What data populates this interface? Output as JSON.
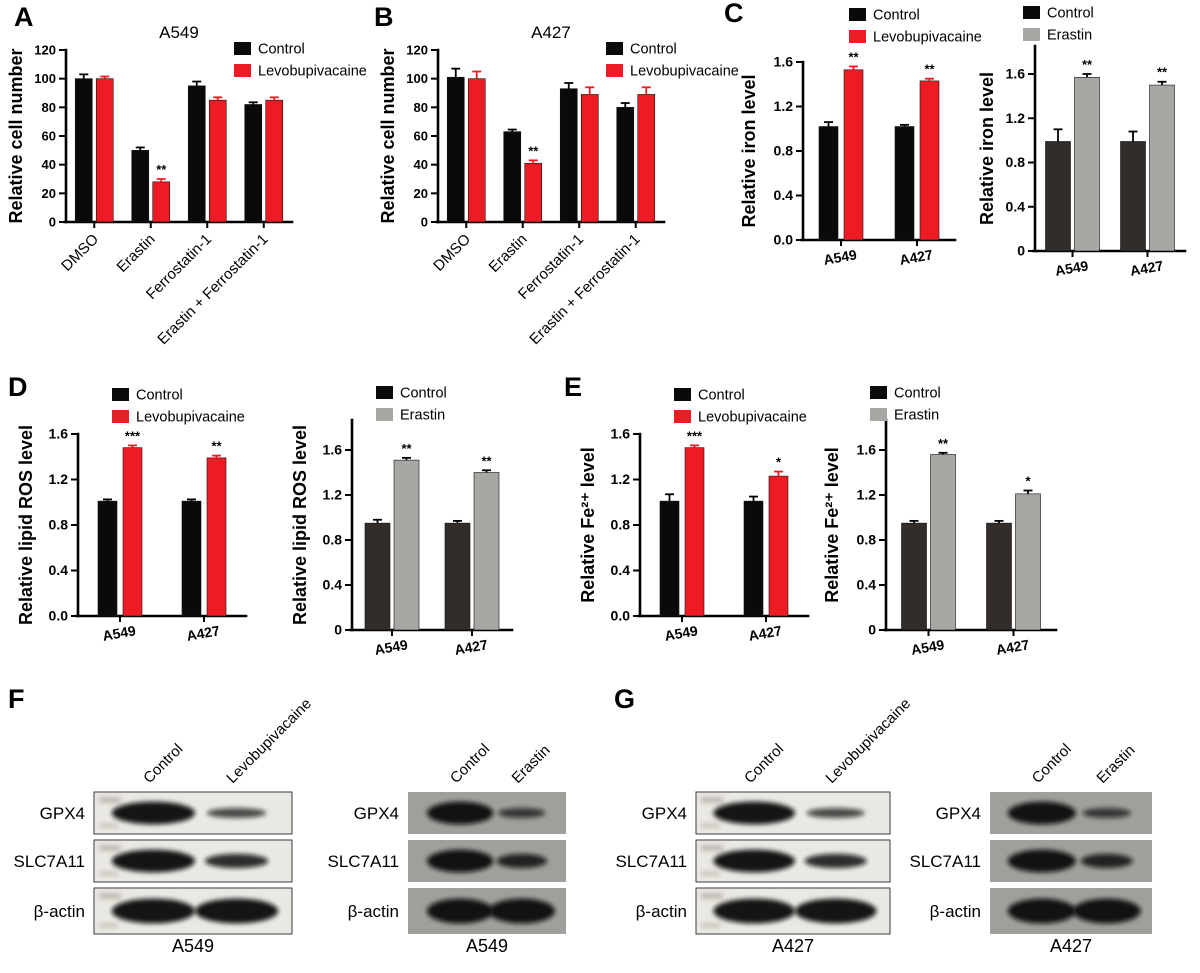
{
  "panels": {
    "A": {
      "letter": "A"
    },
    "B": {
      "letter": "B"
    },
    "C": {
      "letter": "C"
    },
    "D": {
      "letter": "D"
    },
    "E": {
      "letter": "E"
    },
    "F": {
      "letter": "F"
    },
    "G": {
      "letter": "G"
    }
  },
  "colors": {
    "control_black": "#0a0a0a",
    "levobupivacaine_red": "#ed1c24",
    "control_dark": "#322d28",
    "erastin_gray": "#a8a7a3"
  },
  "chart_data": [
    {
      "panel": "A",
      "type": "bar",
      "title": "A549",
      "ylabel": "Relative cell number",
      "categories": [
        "DMSO",
        "Erastin",
        "Ferrostatin-1",
        "Erastin + Ferrostatin-1"
      ],
      "ylim": [
        0,
        120
      ],
      "yticks": [
        "0",
        "20",
        "40",
        "60",
        "80",
        "100",
        "120"
      ],
      "legend_position": "top-right",
      "xlabel_rotation": 45,
      "grid": false,
      "series": [
        {
          "name": "Control",
          "color": "#0a0a0a",
          "error_color": "#000000",
          "values": [
            100,
            50,
            95,
            82
          ],
          "errors": [
            3,
            2,
            3,
            1.5
          ],
          "sig": [
            "",
            "",
            "",
            ""
          ]
        },
        {
          "name": "Levobupivacaine",
          "color": "#ed1c24",
          "error_color": "#ed1c24",
          "values": [
            100,
            28,
            85,
            85
          ],
          "errors": [
            1.5,
            2,
            2,
            2
          ],
          "sig": [
            "",
            "**",
            "",
            ""
          ]
        }
      ]
    },
    {
      "panel": "B",
      "type": "bar",
      "title": "A427",
      "ylabel": "Relative cell number",
      "categories": [
        "DMSO",
        "Erastin",
        "Ferrostatin-1",
        "Erastin + Ferrostatin-1"
      ],
      "ylim": [
        0,
        120
      ],
      "yticks": [
        "0",
        "20",
        "40",
        "60",
        "80",
        "100",
        "120"
      ],
      "legend_position": "top-right",
      "xlabel_rotation": 45,
      "grid": false,
      "series": [
        {
          "name": "Control",
          "color": "#0a0a0a",
          "error_color": "#000000",
          "values": [
            101,
            63,
            93,
            80
          ],
          "errors": [
            6,
            1.5,
            4,
            3
          ],
          "sig": [
            "",
            "",
            "",
            ""
          ]
        },
        {
          "name": "Levobupivacaine",
          "color": "#ed1c24",
          "error_color": "#ed1c24",
          "values": [
            100,
            41,
            89,
            89
          ],
          "errors": [
            5,
            2,
            5,
            5
          ],
          "sig": [
            "",
            "**",
            "",
            ""
          ]
        }
      ]
    },
    {
      "panel": "C",
      "type": "bar",
      "title": "",
      "ylabel": "Relative iron level",
      "categories": [
        "A549",
        "A427"
      ],
      "ylim": [
        0,
        1.6
      ],
      "yticks": [
        "0.0",
        "0.4",
        "0.8",
        "1.2",
        "1.6"
      ],
      "legend_position": "top",
      "xlabel_rotation": -10,
      "grid": false,
      "series": [
        {
          "name": "Control",
          "color": "#0a0a0a",
          "error_color": "#000000",
          "values": [
            1.02,
            1.02
          ],
          "errors": [
            0.04,
            0.015
          ],
          "sig": [
            "",
            ""
          ]
        },
        {
          "name": "Levobupivacaine",
          "color": "#ed1c24",
          "error_color": "#ed1c24",
          "values": [
            1.53,
            1.43
          ],
          "errors": [
            0.03,
            0.02
          ],
          "sig": [
            "**",
            "**"
          ]
        }
      ]
    },
    {
      "panel": "C",
      "type": "bar",
      "title": "",
      "ylabel": "Relative iron level",
      "categories": [
        "A549",
        "A427"
      ],
      "ylim": [
        0,
        1.6
      ],
      "yticks": [
        "0",
        "0.4",
        "0.8",
        "1.2",
        "1.6"
      ],
      "legend_position": "top",
      "xlabel_rotation": -10,
      "grid": false,
      "series": [
        {
          "name": "Control",
          "color": "#322d28",
          "legend_color": "#0a0a0a",
          "error_color": "#000000",
          "values": [
            0.99,
            0.99
          ],
          "errors": [
            0.11,
            0.09
          ],
          "sig": [
            "",
            ""
          ]
        },
        {
          "name": "Erastin",
          "color": "#a8a7a3",
          "error_color": "#000000",
          "values": [
            1.57,
            1.5
          ],
          "errors": [
            0.03,
            0.03
          ],
          "sig": [
            "**",
            "**"
          ]
        }
      ]
    },
    {
      "panel": "D",
      "type": "bar",
      "title": "",
      "ylabel": "Relative lipid ROS level",
      "categories": [
        "A549",
        "A427"
      ],
      "ylim": [
        0,
        1.6
      ],
      "yticks": [
        "0.0",
        "0.4",
        "0.8",
        "1.2",
        "1.6"
      ],
      "legend_position": "top",
      "xlabel_rotation": -10,
      "grid": false,
      "series": [
        {
          "name": "Control",
          "color": "#0a0a0a",
          "error_color": "#000000",
          "values": [
            1.01,
            1.01
          ],
          "errors": [
            0.015,
            0.015
          ],
          "sig": [
            "",
            ""
          ]
        },
        {
          "name": "Levobupivacaine",
          "color": "#ed1c24",
          "error_color": "#ed1c24",
          "values": [
            1.48,
            1.39
          ],
          "errors": [
            0.02,
            0.02
          ],
          "sig": [
            "***",
            "**"
          ]
        }
      ]
    },
    {
      "panel": "D",
      "type": "bar",
      "title": "",
      "ylabel": "Relative lipid ROS level",
      "categories": [
        "A549",
        "A427"
      ],
      "ylim": [
        0,
        1.6
      ],
      "yticks": [
        "0",
        "0.4",
        "0.8",
        "1.2",
        "1.6"
      ],
      "legend_position": "top",
      "xlabel_rotation": -10,
      "grid": false,
      "series": [
        {
          "name": "Control",
          "color": "#322d28",
          "legend_color": "#0a0a0a",
          "error_color": "#000000",
          "values": [
            0.95,
            0.95
          ],
          "errors": [
            0.03,
            0.02
          ],
          "sig": [
            "",
            ""
          ]
        },
        {
          "name": "Erastin",
          "color": "#a8a7a3",
          "error_color": "#000000",
          "values": [
            1.51,
            1.4
          ],
          "errors": [
            0.02,
            0.02
          ],
          "sig": [
            "**",
            "**"
          ]
        }
      ]
    },
    {
      "panel": "E",
      "type": "bar",
      "title": "",
      "ylabel": "Relative Fe²⁺ level",
      "categories": [
        "A549",
        "A427"
      ],
      "ylim": [
        0,
        1.6
      ],
      "yticks": [
        "0.0",
        "0.4",
        "0.8",
        "1.2",
        "1.6"
      ],
      "legend_position": "top",
      "xlabel_rotation": -10,
      "grid": false,
      "series": [
        {
          "name": "Control",
          "color": "#0a0a0a",
          "error_color": "#000000",
          "values": [
            1.01,
            1.01
          ],
          "errors": [
            0.06,
            0.04
          ],
          "sig": [
            "",
            ""
          ]
        },
        {
          "name": "Levobupivacaine",
          "color": "#ed1c24",
          "error_color": "#ed1c24",
          "values": [
            1.48,
            1.23
          ],
          "errors": [
            0.02,
            0.04
          ],
          "sig": [
            "***",
            "*"
          ]
        }
      ]
    },
    {
      "panel": "E",
      "type": "bar",
      "title": "",
      "ylabel": "Relative Fe²⁺ level",
      "categories": [
        "A549",
        "A427"
      ],
      "ylim": [
        0,
        1.6
      ],
      "yticks": [
        "0",
        "0.4",
        "0.8",
        "1.2",
        "1.6"
      ],
      "legend_position": "top",
      "xlabel_rotation": -10,
      "grid": false,
      "series": [
        {
          "name": "Control",
          "color": "#322d28",
          "legend_color": "#0a0a0a",
          "error_color": "#000000",
          "values": [
            0.95,
            0.95
          ],
          "errors": [
            0.02,
            0.02
          ],
          "sig": [
            "",
            ""
          ]
        },
        {
          "name": "Erastin",
          "color": "#a8a7a3",
          "error_color": "#000000",
          "values": [
            1.56,
            1.21
          ],
          "errors": [
            0.015,
            0.03
          ],
          "sig": [
            "**",
            "*"
          ]
        }
      ]
    }
  ],
  "blots": [
    {
      "panel": "F",
      "cell_line": "A549",
      "background": "light",
      "lanes": [
        "Control",
        "Levobupivacaine"
      ],
      "rows": [
        {
          "protein": "GPX4",
          "bands": [
            "strong",
            "weak"
          ]
        },
        {
          "protein": "SLC7A11",
          "bands": [
            "strong",
            "medium"
          ]
        },
        {
          "protein": "β-actin",
          "bands": [
            "strong",
            "strong"
          ]
        }
      ]
    },
    {
      "panel": "F",
      "cell_line": "A549",
      "background": "gray",
      "lanes": [
        "Control",
        "Erastin"
      ],
      "rows": [
        {
          "protein": "GPX4",
          "bands": [
            "strong",
            "weak"
          ]
        },
        {
          "protein": "SLC7A11",
          "bands": [
            "strong",
            "medium"
          ]
        },
        {
          "protein": "β-actin",
          "bands": [
            "strong",
            "strong"
          ]
        }
      ]
    },
    {
      "panel": "G",
      "cell_line": "A427",
      "background": "light",
      "lanes": [
        "Control",
        "Levobupivacaine"
      ],
      "rows": [
        {
          "protein": "GPX4",
          "bands": [
            "strong",
            "weak"
          ]
        },
        {
          "protein": "SLC7A11",
          "bands": [
            "strong",
            "medium"
          ]
        },
        {
          "protein": "β-actin",
          "bands": [
            "strong",
            "strong"
          ]
        }
      ]
    },
    {
      "panel": "G",
      "cell_line": "A427",
      "background": "gray",
      "lanes": [
        "Control",
        "Erastin"
      ],
      "rows": [
        {
          "protein": "GPX4",
          "bands": [
            "strong",
            "weak"
          ]
        },
        {
          "protein": "SLC7A11",
          "bands": [
            "strong",
            "medium"
          ]
        },
        {
          "protein": "β-actin",
          "bands": [
            "strong",
            "strong"
          ]
        }
      ]
    }
  ]
}
